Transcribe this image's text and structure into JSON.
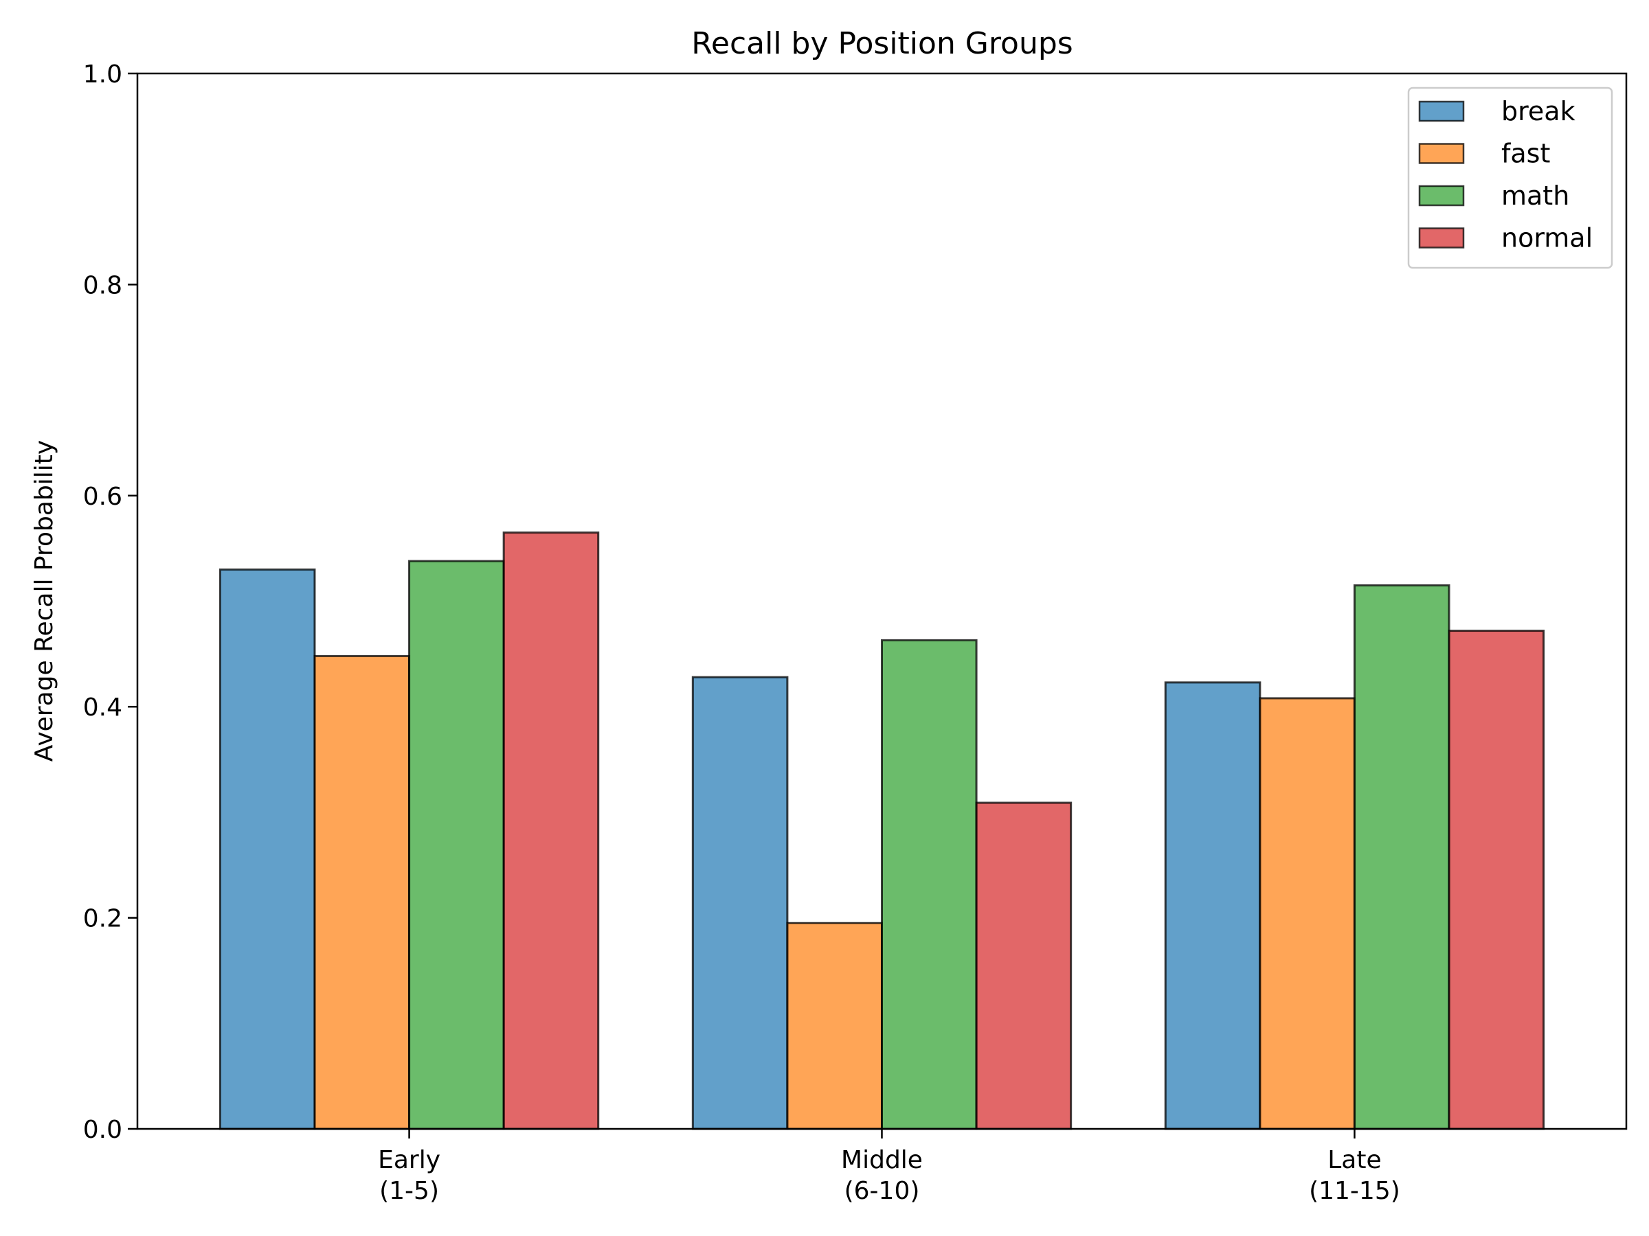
{
  "chart_data": {
    "type": "bar",
    "title": "Recall by Position Groups",
    "xlabel": "",
    "ylabel": "Average Recall Probability",
    "ylim": [
      0,
      1.0
    ],
    "yticks": [
      0.0,
      0.2,
      0.4,
      0.6,
      0.8,
      1.0
    ],
    "ytick_labels": [
      "0.0",
      "0.2",
      "0.4",
      "0.6",
      "0.8",
      "1.0"
    ],
    "categories": [
      [
        "Early",
        "(1-5)"
      ],
      [
        "Middle",
        "(6-10)"
      ],
      [
        "Late",
        "(11-15)"
      ]
    ],
    "series": [
      {
        "name": "break",
        "color": "#1f77b4",
        "values": [
          0.53,
          0.428,
          0.423
        ]
      },
      {
        "name": "fast",
        "color": "#ff7f0e",
        "values": [
          0.448,
          0.195,
          0.408
        ]
      },
      {
        "name": "math",
        "color": "#2ca02c",
        "values": [
          0.538,
          0.463,
          0.515
        ]
      },
      {
        "name": "normal",
        "color": "#d62728",
        "values": [
          0.565,
          0.309,
          0.472
        ]
      }
    ],
    "bar_opacity": 0.7,
    "grid": false,
    "legend_position": "top-right"
  }
}
